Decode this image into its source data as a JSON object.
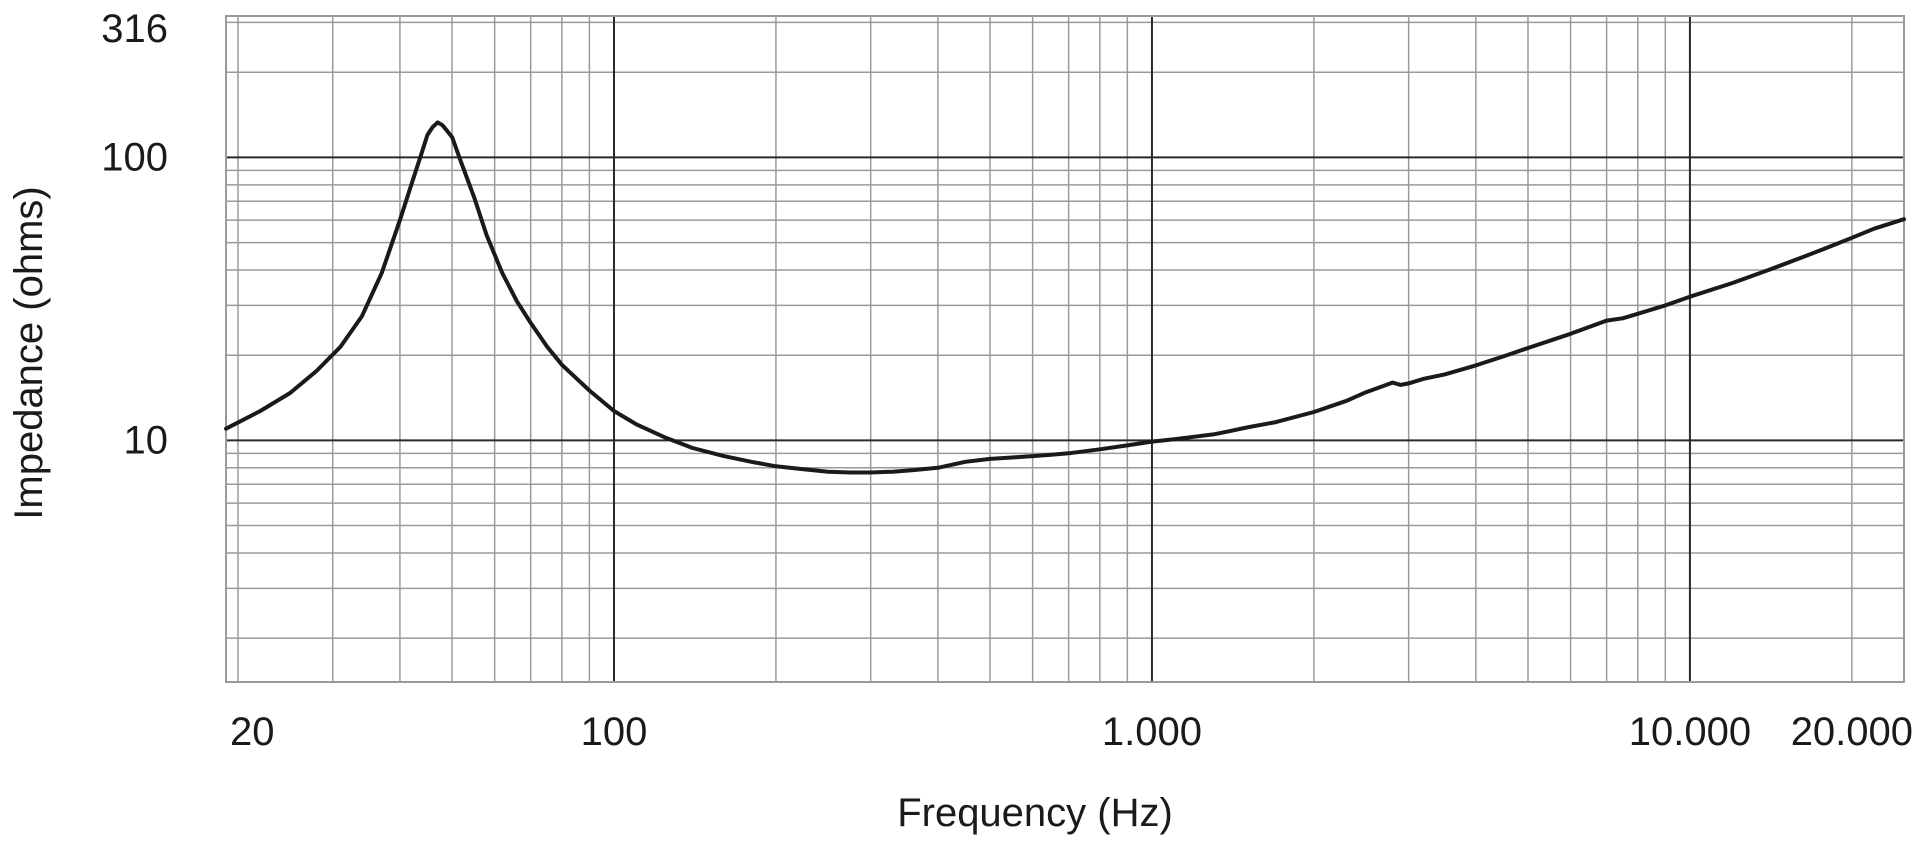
{
  "chart_data": {
    "type": "line",
    "title": "",
    "xlabel": "Frequency (Hz)",
    "ylabel": "Impedance (ohms)",
    "x_scale": "log",
    "y_scale": "log",
    "xlim": [
      19,
      25000
    ],
    "ylim": [
      1.4,
      316
    ],
    "x_ticks": [
      {
        "value": 20,
        "label": "20"
      },
      {
        "value": 100,
        "label": "100"
      },
      {
        "value": 1000,
        "label": "1.000"
      },
      {
        "value": 10000,
        "label": "10.000"
      },
      {
        "value": 20000,
        "label": "20.000"
      }
    ],
    "y_ticks": [
      {
        "value": 10,
        "label": "10"
      },
      {
        "value": 100,
        "label": "100"
      },
      {
        "value": 316,
        "label": "316"
      }
    ],
    "grid": true,
    "legend": "none",
    "colors": {
      "line": "#1a1a1a",
      "grid_minor": "#9a9a9a",
      "grid_major": "#2a2a2a"
    },
    "series": [
      {
        "x": [
          19,
          22,
          25,
          28,
          31,
          34,
          37,
          40,
          42,
          44,
          45,
          46,
          47,
          48,
          50,
          52,
          55,
          58,
          62,
          66,
          70,
          75,
          80,
          90,
          100,
          110,
          125,
          140,
          160,
          180,
          200,
          225,
          250,
          275,
          300,
          330,
          360,
          400,
          450,
          500,
          550,
          600,
          650,
          700,
          800,
          900,
          1000,
          1100,
          1200,
          1300,
          1400,
          1500,
          1700,
          2000,
          2300,
          2500,
          2700,
          2800,
          2900,
          3000,
          3200,
          3500,
          4000,
          4500,
          5000,
          6000,
          7000,
          7500,
          8000,
          9000,
          10000,
          12000,
          14000,
          16000,
          18000,
          20000,
          22000,
          25000
        ],
        "y": [
          11.0,
          12.7,
          14.7,
          17.6,
          21.4,
          27.5,
          39,
          60,
          80,
          105,
          120,
          128,
          133,
          130,
          118,
          96,
          72,
          53,
          39,
          31,
          26,
          21.5,
          18.5,
          15.0,
          12.7,
          11.4,
          10.2,
          9.4,
          8.8,
          8.4,
          8.1,
          7.9,
          7.75,
          7.7,
          7.7,
          7.75,
          7.85,
          8.0,
          8.4,
          8.6,
          8.7,
          8.8,
          8.9,
          9.0,
          9.3,
          9.6,
          9.9,
          10.1,
          10.3,
          10.5,
          10.8,
          11.1,
          11.6,
          12.6,
          13.8,
          14.8,
          15.6,
          16.0,
          15.7,
          15.9,
          16.5,
          17.1,
          18.4,
          19.8,
          21.2,
          23.8,
          26.5,
          27.0,
          28.0,
          30.0,
          32.2,
          36.0,
          40.0,
          44.0,
          48.0,
          52.0,
          56.0,
          60.5
        ]
      }
    ]
  }
}
